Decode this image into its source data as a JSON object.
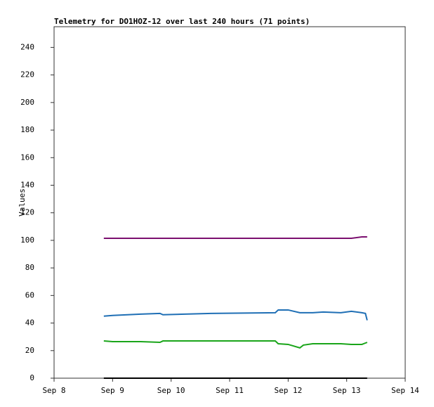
{
  "chart_data": {
    "type": "line",
    "title": "Telemetry for DO1HOZ-12 over last 240 hours (71 points)",
    "y_label": "Values",
    "x": [
      8.85,
      9.0,
      9.48,
      9.81,
      9.86,
      10.68,
      11.78,
      11.83,
      12.0,
      12.2,
      12.26,
      12.42,
      12.6,
      12.9,
      13.08,
      13.26,
      13.32,
      13.35
    ],
    "series": [
      {
        "color": "#7b0f6f",
        "values": [
          101.5,
          101.5,
          101.5,
          101.5,
          101.5,
          101.5,
          101.5,
          101.5,
          101.5,
          101.5,
          101.5,
          101.5,
          101.5,
          101.5,
          101.5,
          102.5,
          102.5,
          102.5
        ]
      },
      {
        "color": "#1f6fb5",
        "values": [
          45,
          45.5,
          46.5,
          47,
          46,
          47,
          47.5,
          49.5,
          49.5,
          47.5,
          47.5,
          47.5,
          48,
          47.5,
          48.5,
          47.5,
          47,
          42
        ]
      },
      {
        "color": "#1aa51a",
        "values": [
          27,
          26.5,
          26.5,
          26,
          27,
          27,
          27,
          25,
          24.5,
          22,
          24,
          25,
          25,
          25,
          24.5,
          24.5,
          25.5,
          26
        ]
      },
      {
        "color": "#000000",
        "values": [
          0,
          0,
          0,
          0,
          0,
          0,
          0,
          0,
          0,
          0,
          0,
          0,
          0,
          0,
          0,
          0,
          0,
          0
        ]
      }
    ],
    "xlim": [
      8,
      14
    ],
    "xticks": [
      {
        "value": 8,
        "label": "Sep 8"
      },
      {
        "value": 9,
        "label": "Sep 9"
      },
      {
        "value": 10,
        "label": "Sep 10"
      },
      {
        "value": 11,
        "label": "Sep 11"
      },
      {
        "value": 12,
        "label": "Sep 12"
      },
      {
        "value": 13,
        "label": "Sep 13"
      },
      {
        "value": 14,
        "label": "Sep 14"
      }
    ],
    "ylim": [
      0,
      255
    ],
    "yticks": [
      0,
      20,
      40,
      60,
      80,
      100,
      120,
      140,
      160,
      180,
      200,
      220,
      240
    ],
    "grid": false
  }
}
